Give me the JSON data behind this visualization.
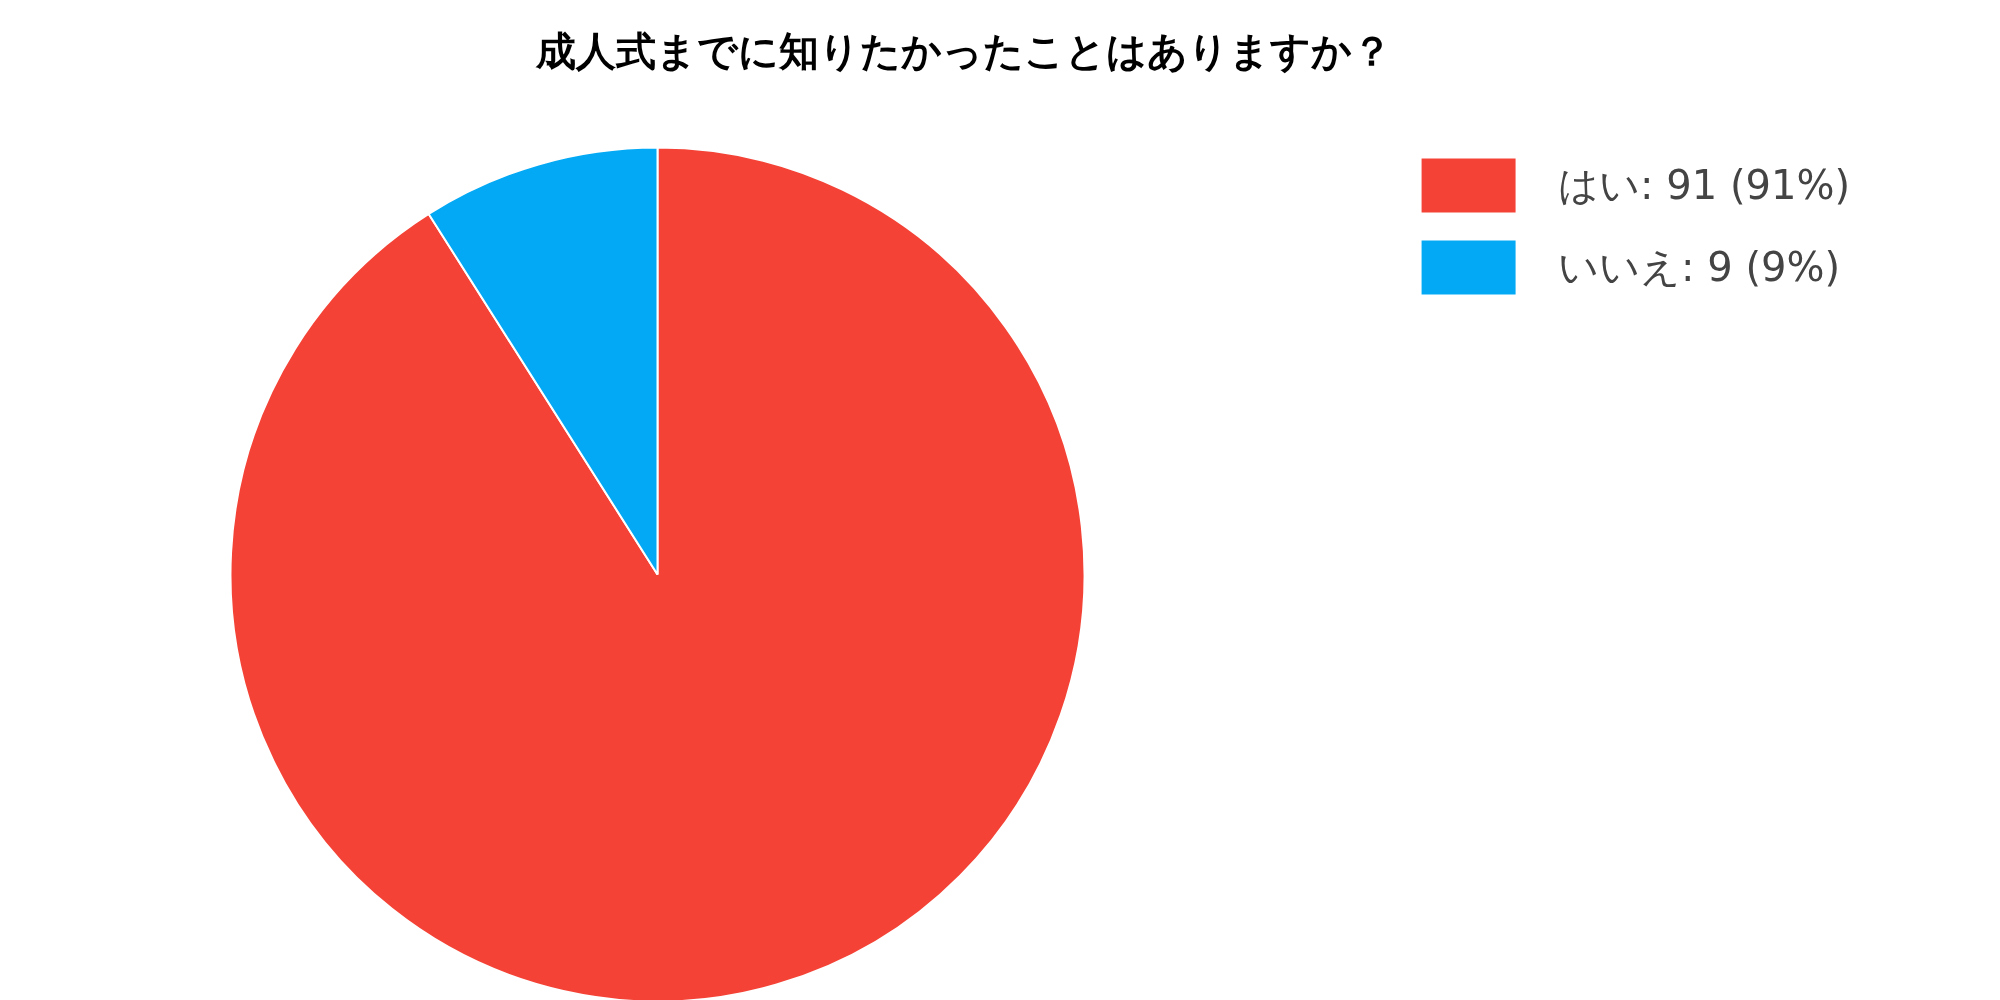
{
  "chart_data": {
    "type": "pie",
    "title": "成人式までに知りたかったことはありますか？",
    "categories": [
      "はい: 91 (91%)",
      "いいえ: 9 (9%)"
    ],
    "values": [
      91,
      9
    ],
    "colors": [
      "#f44336",
      "#03a9f4"
    ],
    "legend": "top right"
  }
}
